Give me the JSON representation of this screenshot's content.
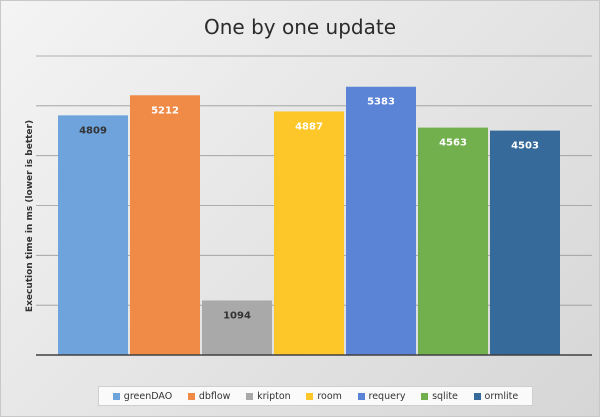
{
  "chart_data": {
    "type": "bar",
    "title": "One by one update",
    "ylabel": "Execution time in ms  (lower is better)",
    "xlabel": "",
    "ylim": [
      0,
      6000
    ],
    "grid": true,
    "legend_position": "bottom",
    "categories": [
      "greenDAO",
      "dbflow",
      "kripton",
      "room",
      "requery",
      "sqlite",
      "ormlite"
    ],
    "values": [
      4809,
      5212,
      1094,
      4887,
      5383,
      4563,
      4503
    ],
    "value_labels": [
      "4809",
      "5212",
      "1094",
      "4887",
      "5383",
      "4563",
      "4503"
    ],
    "colors": [
      "#6fa3dc",
      "#ef8a47",
      "#a9a9a9",
      "#fdc72a",
      "#5b84d6",
      "#72b04e",
      "#356a9b"
    ],
    "label_colors": [
      "#333333",
      "#ffffff",
      "#333333",
      "#ffffff",
      "#ffffff",
      "#ffffff",
      "#ffffff"
    ]
  }
}
